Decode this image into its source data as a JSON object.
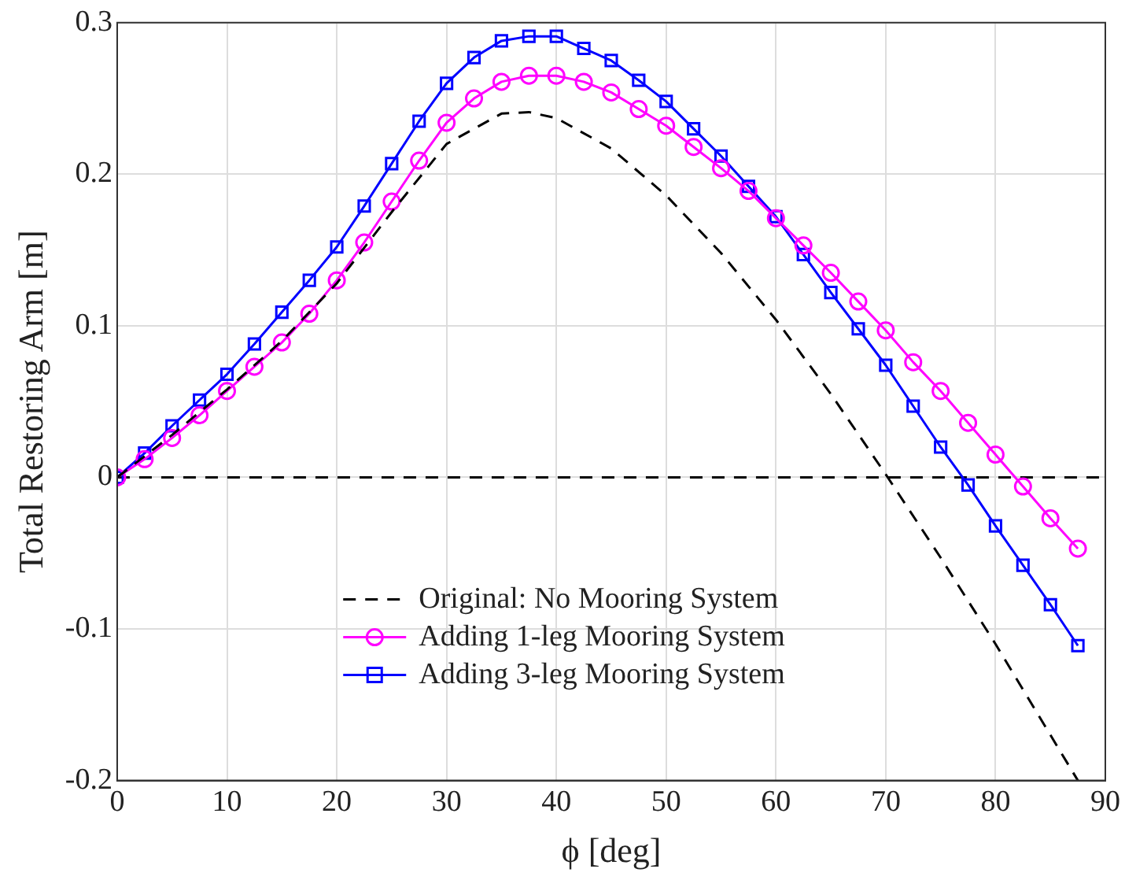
{
  "chart_data": {
    "type": "line",
    "xlabel": "ϕ [deg]",
    "ylabel": "Total Restoring Arm [m]",
    "xlim": [
      0,
      90
    ],
    "xticks": [
      0,
      10,
      20,
      30,
      40,
      50,
      60,
      70,
      80,
      90
    ],
    "ylim": [
      -0.2,
      0.3
    ],
    "yticks": [
      -0.2,
      -0.1,
      0,
      0.1,
      0.2,
      0.3
    ],
    "grid": true,
    "legend": "bottom",
    "ref_lines": [
      {
        "axis": "y",
        "value": 0,
        "color": "#000000",
        "line_style": "dashed"
      }
    ],
    "series": [
      {
        "name": "Original: No Mooring System",
        "color": "#000000",
        "line_style": "dashed",
        "marker": "none",
        "x": [
          0,
          5,
          10,
          15,
          20,
          25,
          30,
          35,
          37.5,
          40,
          45,
          50,
          55,
          60,
          65,
          70,
          75,
          80,
          85,
          87.5
        ],
        "values": [
          0,
          0.028,
          0.058,
          0.09,
          0.128,
          0.175,
          0.22,
          0.24,
          0.241,
          0.237,
          0.217,
          0.186,
          0.148,
          0.104,
          0.055,
          0.002,
          -0.053,
          -0.11,
          -0.17,
          -0.2
        ]
      },
      {
        "name": "Adding 1-leg Mooring System",
        "color": "#ff00ff",
        "line_style": "solid",
        "marker": "circle",
        "x": [
          0,
          2.5,
          5,
          7.5,
          10,
          12.5,
          15,
          17.5,
          20,
          22.5,
          25,
          27.5,
          30,
          32.5,
          35,
          37.5,
          40,
          42.5,
          45,
          47.5,
          50,
          52.5,
          55,
          57.5,
          60,
          62.5,
          65,
          67.5,
          70,
          72.5,
          75,
          77.5,
          80,
          82.5,
          85,
          87.5
        ],
        "values": [
          0,
          0.012,
          0.026,
          0.041,
          0.057,
          0.073,
          0.089,
          0.108,
          0.13,
          0.155,
          0.182,
          0.209,
          0.234,
          0.25,
          0.261,
          0.265,
          0.265,
          0.261,
          0.254,
          0.243,
          0.232,
          0.218,
          0.204,
          0.189,
          0.171,
          0.153,
          0.135,
          0.116,
          0.097,
          0.076,
          0.057,
          0.036,
          0.015,
          -0.006,
          -0.027,
          -0.047
        ]
      },
      {
        "name": "Adding 3-leg Mooring System",
        "color": "#0000ff",
        "line_style": "solid",
        "marker": "square",
        "x": [
          0,
          2.5,
          5,
          7.5,
          10,
          12.5,
          15,
          17.5,
          20,
          22.5,
          25,
          27.5,
          30,
          32.5,
          35,
          37.5,
          40,
          42.5,
          45,
          47.5,
          50,
          52.5,
          55,
          57.5,
          60,
          62.5,
          65,
          67.5,
          70,
          72.5,
          75,
          77.5,
          80,
          82.5,
          85,
          87.5
        ],
        "values": [
          0,
          0.016,
          0.034,
          0.051,
          0.068,
          0.088,
          0.109,
          0.13,
          0.152,
          0.179,
          0.207,
          0.235,
          0.26,
          0.277,
          0.288,
          0.291,
          0.291,
          0.283,
          0.275,
          0.262,
          0.248,
          0.23,
          0.212,
          0.192,
          0.172,
          0.147,
          0.122,
          0.098,
          0.074,
          0.047,
          0.02,
          -0.005,
          -0.032,
          -0.058,
          -0.084,
          -0.111
        ]
      }
    ]
  }
}
